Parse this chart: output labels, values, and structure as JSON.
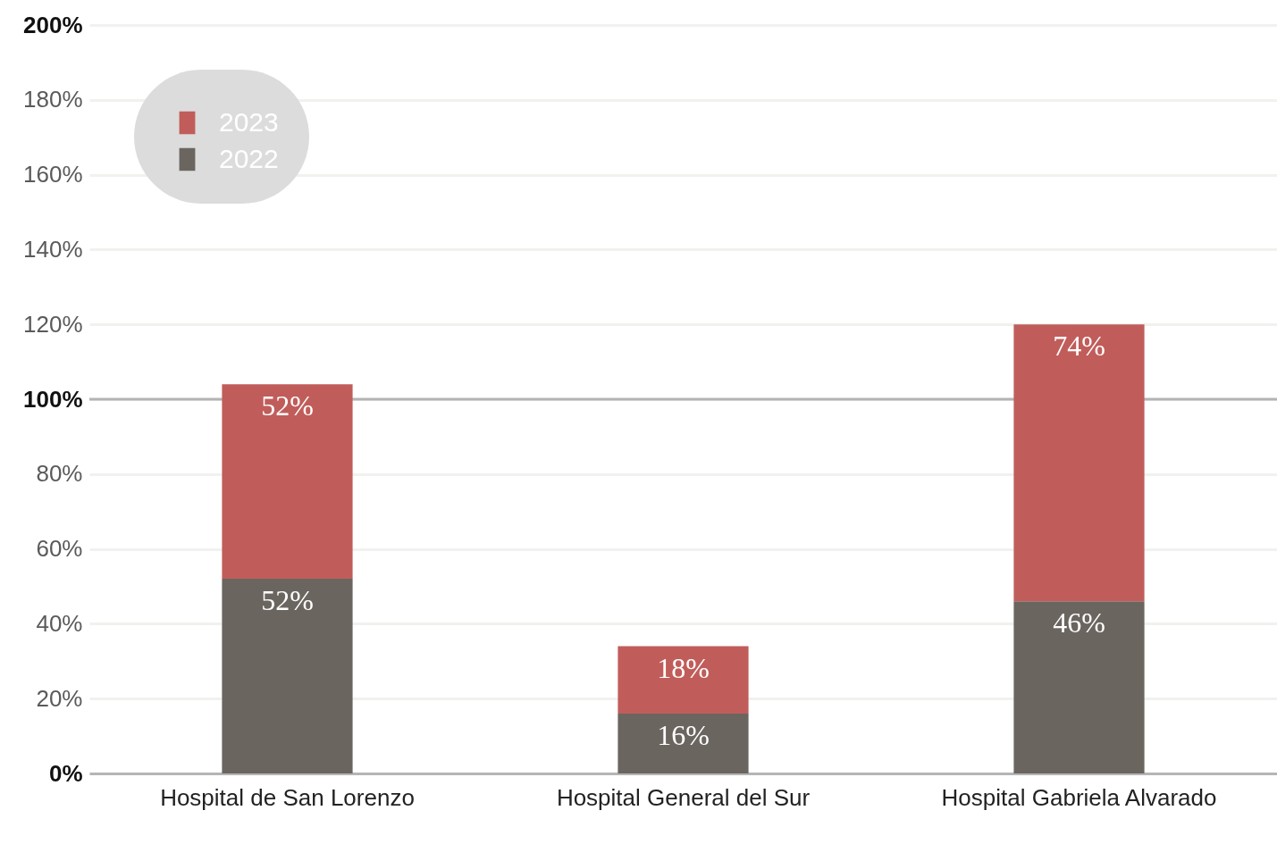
{
  "chart_data": {
    "type": "bar",
    "categories": [
      "Hospital de San Lorenzo",
      "Hospital General del Sur",
      "Hospital Gabriela Alvarado"
    ],
    "stacked": true,
    "series": [
      {
        "name": "2022",
        "color": "#6b6560",
        "values": [
          52,
          16,
          46
        ],
        "value_labels": [
          "52%",
          "16%",
          "46%"
        ]
      },
      {
        "name": "2023",
        "color": "#c05d5a",
        "values": [
          52,
          18,
          74
        ],
        "value_labels": [
          "52%",
          "18%",
          "74%"
        ]
      }
    ],
    "ylim": [
      0,
      200
    ],
    "yticks": [
      {
        "value": 0,
        "label": "0%"
      },
      {
        "value": 20,
        "label": "20%"
      },
      {
        "value": 40,
        "label": "40%"
      },
      {
        "value": 60,
        "label": "60%"
      },
      {
        "value": 80,
        "label": "80%"
      },
      {
        "value": 100,
        "label": "100%"
      },
      {
        "value": 120,
        "label": "120%"
      },
      {
        "value": 140,
        "label": "140%"
      },
      {
        "value": 160,
        "label": "160%"
      },
      {
        "value": 180,
        "label": "180%"
      },
      {
        "value": 200,
        "label": "200%"
      }
    ],
    "ref_lines": [
      {
        "axis": "y",
        "value": 100,
        "color": "#b3b3b3"
      }
    ],
    "grid": "y",
    "legend": "top left"
  }
}
